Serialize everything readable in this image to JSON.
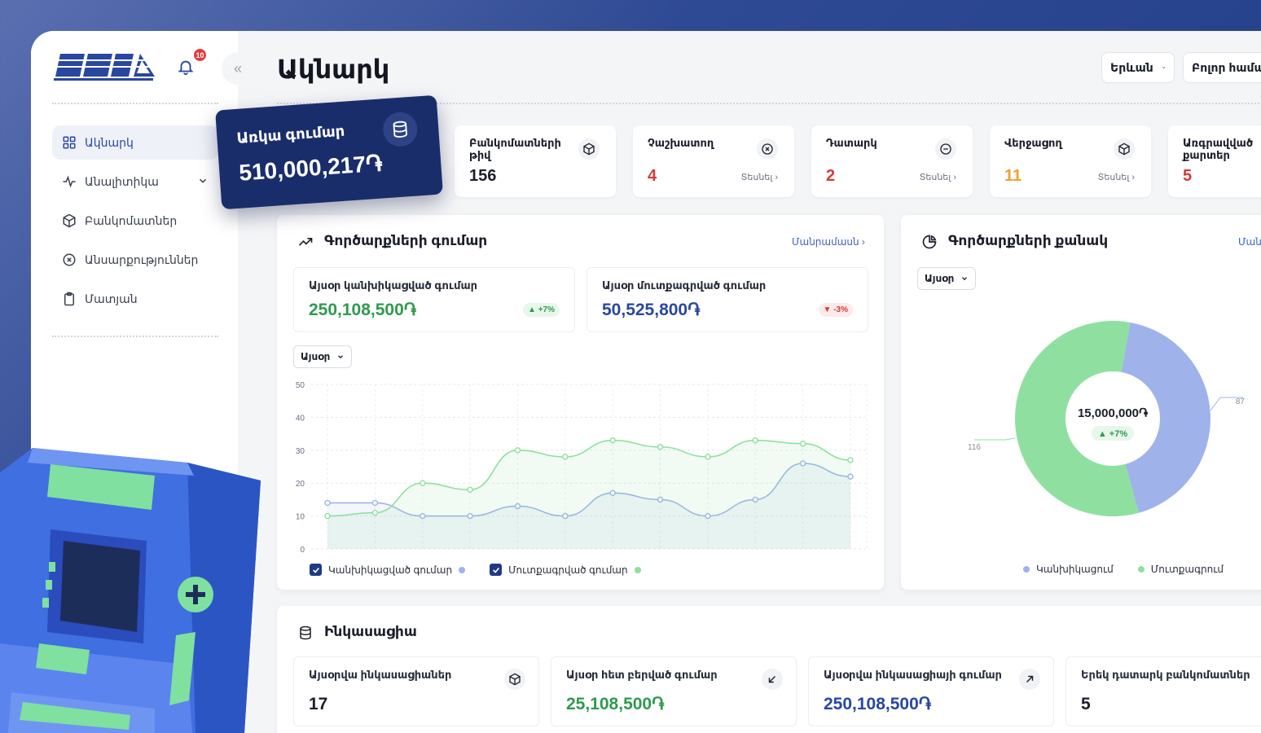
{
  "sidebar": {
    "notification_count": "10",
    "items": [
      {
        "label": "Ակնարկ",
        "icon": "dashboard-grid-icon",
        "active": true
      },
      {
        "label": "Անալիտիկա",
        "icon": "activity-pulse-icon",
        "has_submenu": true
      },
      {
        "label": "Բանկոմատներ",
        "icon": "box-icon"
      },
      {
        "label": "Անսարքություններ",
        "icon": "x-circle-icon"
      },
      {
        "label": "Մատյան",
        "icon": "clipboard-icon"
      }
    ]
  },
  "header": {
    "title": "Ակնարկ",
    "city_select": "Երևան",
    "all_select": "Բոլոր համա"
  },
  "balance": {
    "label": "Առկա գումար",
    "value": "510,000,217֏"
  },
  "stats": [
    {
      "label": "Բանկոմատների թիվ",
      "value": "156",
      "icon": "box-icon"
    },
    {
      "label": "Չաշխատող",
      "value": "4",
      "icon": "x-circle-icon",
      "link": "Տեսնել",
      "color": "#d43a3a"
    },
    {
      "label": "Դատարկ",
      "value": "2",
      "icon": "minus-circle-icon",
      "link": "Տեսնել",
      "color": "#d43a3a"
    },
    {
      "label": "Վերջացող",
      "value": "11",
      "icon": "box-icon",
      "link": "Տեսնել",
      "color": "#f0a030"
    },
    {
      "label": "Առգրավված քարտեր",
      "value": "5",
      "color": "#d43a3a"
    }
  ],
  "transactions_amount": {
    "title": "Գործարքների գումար",
    "link": "Մանրամասն",
    "cards": [
      {
        "label": "Այսօր կանխիկացված գումար",
        "value": "250,108,500֏",
        "badge": "+7%",
        "trend": "up",
        "color": "#2f9a4f"
      },
      {
        "label": "Այսօր մուտքագրված գումար",
        "value": "50,525,800֏",
        "badge": "-3%",
        "trend": "down",
        "color": "#2947a0"
      }
    ],
    "period": "Այսօր",
    "legend": [
      {
        "label": "Կանխիկացված գումար",
        "color": "#9fb3ea"
      },
      {
        "label": "Մուտքագրված գումար",
        "color": "#8fe0a0"
      }
    ]
  },
  "transactions_count": {
    "title": "Գործարքների քանակ",
    "link": "Մանր",
    "period": "Այսօր",
    "center_value": "15,000,000֏",
    "center_badge": "+7%",
    "label_left": "116",
    "label_right": "87",
    "legend": [
      {
        "label": "Կանխիկացում",
        "color": "#9fb3ea"
      },
      {
        "label": "Մուտքագրում",
        "color": "#8fe0a0"
      }
    ]
  },
  "collection": {
    "title": "Ինկասացիա",
    "cards": [
      {
        "label": "Այսօրվա ինկասացիաներ",
        "value": "17",
        "icon": "box-icon",
        "color": "#1c1f2b"
      },
      {
        "label": "Այսօր հետ բերված գումար",
        "value": "25,108,500֏",
        "icon": "arrow-down-left-icon",
        "color": "#2f9a4f"
      },
      {
        "label": "Այսօրվա ինկասացիայի գումար",
        "value": "250,108,500֏",
        "icon": "arrow-up-right-icon",
        "color": "#2947a0"
      },
      {
        "label": "Երեկ դատարկ բանկոմատներ",
        "value": "5",
        "color": "#1c1f2b"
      }
    ]
  },
  "chart_data": [
    {
      "type": "line",
      "x": [
        1,
        2,
        3,
        4,
        5,
        6,
        7,
        8,
        9,
        10,
        11,
        12
      ],
      "series": [
        {
          "name": "Կանխիկացված գումար",
          "color": "#9fb3ea",
          "values": [
            14,
            14,
            10,
            10,
            13,
            10,
            17,
            15,
            10,
            15,
            26,
            22
          ]
        },
        {
          "name": "Մուտքագրված գումար",
          "color": "#8fe0a0",
          "values": [
            10,
            11,
            20,
            18,
            30,
            28,
            33,
            31,
            28,
            33,
            32,
            27
          ]
        }
      ],
      "ylim": [
        0,
        50
      ],
      "yticks": [
        "50",
        "40",
        "30",
        "20",
        "10",
        "0"
      ],
      "grid": true
    },
    {
      "type": "pie",
      "labels": [
        "Կանխիկացում",
        "Մուտքագրում"
      ],
      "values": [
        87,
        116
      ],
      "colors": [
        "#9fb3ea",
        "#8fe0a0"
      ]
    }
  ]
}
